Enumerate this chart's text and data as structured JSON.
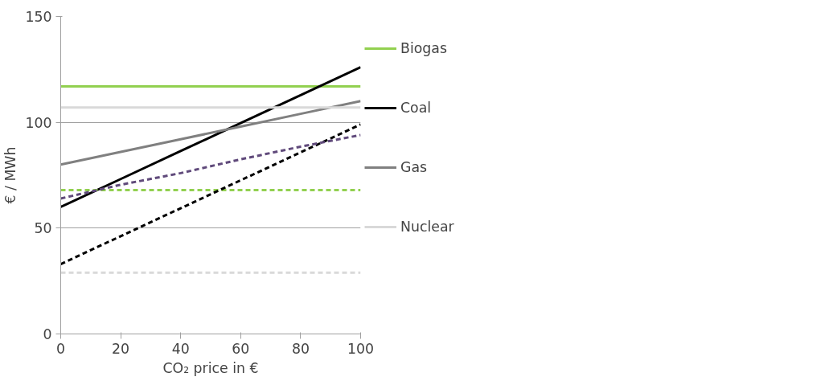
{
  "chart_data": {
    "type": "line",
    "xlabel": "CO₂ price in €",
    "ylabel": "€ / MWh",
    "x": [
      0,
      20,
      40,
      60,
      80,
      100
    ],
    "xlim": [
      0,
      100
    ],
    "xticks": [
      0,
      20,
      40,
      60,
      80,
      100
    ],
    "ylim": [
      0,
      150
    ],
    "yticks": [
      0,
      50,
      100,
      150
    ],
    "grid": "y",
    "legend": "right",
    "marker": "none",
    "series": [
      {
        "name": "Biogas",
        "color": "#92d050",
        "line_style": "solid",
        "values": [
          117,
          117,
          117,
          117,
          117,
          117
        ]
      },
      {
        "name": "Coal",
        "color": "#000000",
        "line_style": "solid",
        "values": [
          60,
          73.2,
          86.4,
          99.6,
          112.8,
          126
        ]
      },
      {
        "name": "Gas",
        "color": "#808080",
        "line_style": "solid",
        "values": [
          80,
          86,
          92,
          98,
          104,
          110
        ]
      },
      {
        "name": "Nuclear",
        "color": "#d9d9d9",
        "line_style": "solid",
        "values": [
          107,
          107,
          107,
          107,
          107,
          107
        ]
      },
      {
        "color": "#92d050",
        "line_style": "dashed",
        "values": [
          68,
          68,
          68,
          68,
          68,
          68
        ]
      },
      {
        "color": "#000000",
        "line_style": "dashed",
        "values": [
          33,
          46.2,
          59.4,
          72.6,
          85.8,
          99
        ]
      },
      {
        "color": "#604a7b",
        "line_style": "dashed",
        "values": [
          64,
          70.5,
          76,
          82.5,
          88.5,
          94
        ]
      },
      {
        "color": "#d9d9d9",
        "line_style": "dashed",
        "values": [
          29,
          29,
          29,
          29,
          29,
          29
        ]
      }
    ]
  }
}
